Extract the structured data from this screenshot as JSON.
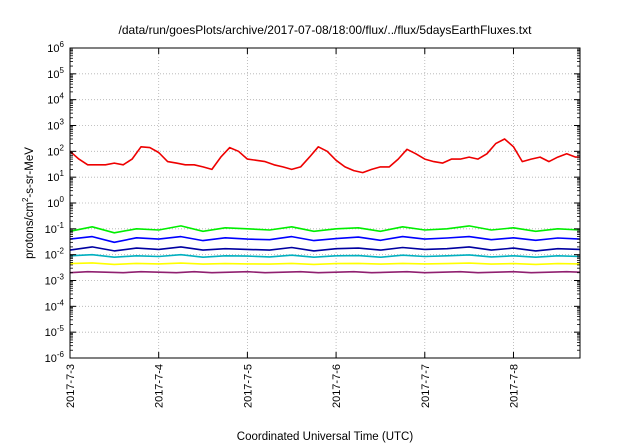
{
  "chart_data": {
    "type": "line",
    "title": "/data/run/goesPlots/archive/2017-07-08/18:00/flux/../flux/5daysEarthFluxes.txt",
    "xlabel": "Coordinated Universal Time (UTC)",
    "ylabel": {
      "prefix": "protons/cm",
      "sup": "2",
      "suffix": "-s-sr-MeV"
    },
    "yscale": "log",
    "ylim": [
      1e-06,
      1000000.0
    ],
    "xlim": [
      0,
      5.75
    ],
    "y_ticks": [
      {
        "base": "10",
        "exp": "-6",
        "value": -6
      },
      {
        "base": "10",
        "exp": "-5",
        "value": -5
      },
      {
        "base": "10",
        "exp": "-4",
        "value": -4
      },
      {
        "base": "10",
        "exp": "-3",
        "value": -3
      },
      {
        "base": "10",
        "exp": "-2",
        "value": -2
      },
      {
        "base": "10",
        "exp": "-1",
        "value": -1
      },
      {
        "base": "10",
        "exp": "0",
        "value": 0
      },
      {
        "base": "10",
        "exp": "1",
        "value": 1
      },
      {
        "base": "10",
        "exp": "2",
        "value": 2
      },
      {
        "base": "10",
        "exp": "3",
        "value": 3
      },
      {
        "base": "10",
        "exp": "4",
        "value": 4
      },
      {
        "base": "10",
        "exp": "5",
        "value": 5
      },
      {
        "base": "10",
        "exp": "6",
        "value": 6
      }
    ],
    "x_ticks": [
      {
        "label": "2017-7-3",
        "value": 0
      },
      {
        "label": "2017-7-4",
        "value": 1
      },
      {
        "label": "2017-7-5",
        "value": 2
      },
      {
        "label": "2017-7-6",
        "value": 3
      },
      {
        "label": "2017-7-7",
        "value": 4
      },
      {
        "label": "2017-7-8",
        "value": 5
      }
    ],
    "grid": true,
    "series": [
      {
        "color": "#ee0000",
        "x": [
          0,
          0.1,
          0.2,
          0.3,
          0.4,
          0.5,
          0.6,
          0.7,
          0.8,
          0.9,
          1,
          1.1,
          1.2,
          1.3,
          1.4,
          1.5,
          1.6,
          1.7,
          1.8,
          1.9,
          2,
          2.1,
          2.2,
          2.3,
          2.4,
          2.5,
          2.6,
          2.7,
          2.8,
          2.9,
          3,
          3.1,
          3.2,
          3.3,
          3.4,
          3.5,
          3.6,
          3.7,
          3.8,
          3.9,
          4,
          4.1,
          4.2,
          4.3,
          4.4,
          4.5,
          4.6,
          4.7,
          4.8,
          4.9,
          5,
          5.1,
          5.2,
          5.3,
          5.4,
          5.5,
          5.6,
          5.7,
          5.75
        ],
        "y": [
          100,
          50,
          30,
          30,
          30,
          35,
          30,
          50,
          150,
          140,
          90,
          40,
          35,
          30,
          30,
          25,
          20,
          60,
          140,
          100,
          50,
          45,
          40,
          30,
          25,
          20,
          25,
          60,
          150,
          100,
          45,
          25,
          18,
          15,
          20,
          25,
          25,
          50,
          120,
          80,
          50,
          40,
          35,
          50,
          50,
          60,
          50,
          80,
          200,
          300,
          150,
          40,
          50,
          60,
          40,
          60,
          80,
          60,
          60
        ]
      },
      {
        "color": "#00ee00",
        "x": [
          0,
          0.25,
          0.5,
          0.75,
          1,
          1.25,
          1.5,
          1.75,
          2,
          2.25,
          2.5,
          2.75,
          3,
          3.25,
          3.5,
          3.75,
          4,
          4.25,
          4.5,
          4.75,
          5,
          5.25,
          5.5,
          5.75
        ],
        "y": [
          0.08,
          0.12,
          0.07,
          0.1,
          0.09,
          0.13,
          0.08,
          0.11,
          0.1,
          0.09,
          0.12,
          0.08,
          0.1,
          0.11,
          0.08,
          0.12,
          0.09,
          0.1,
          0.13,
          0.09,
          0.11,
          0.08,
          0.1,
          0.09
        ]
      },
      {
        "color": "#0000ff",
        "x": [
          0,
          0.25,
          0.5,
          0.75,
          1,
          1.25,
          1.5,
          1.75,
          2,
          2.25,
          2.5,
          2.75,
          3,
          3.25,
          3.5,
          3.75,
          4,
          4.25,
          4.5,
          4.75,
          5,
          5.25,
          5.5,
          5.75
        ],
        "y": [
          0.04,
          0.05,
          0.03,
          0.045,
          0.04,
          0.05,
          0.035,
          0.045,
          0.04,
          0.038,
          0.05,
          0.035,
          0.042,
          0.048,
          0.036,
          0.05,
          0.04,
          0.044,
          0.05,
          0.038,
          0.045,
          0.036,
          0.044,
          0.04
        ]
      },
      {
        "color": "#0000a0",
        "x": [
          0,
          0.25,
          0.5,
          0.75,
          1,
          1.25,
          1.5,
          1.75,
          2,
          2.25,
          2.5,
          2.75,
          3,
          3.25,
          3.5,
          3.75,
          4,
          4.25,
          4.5,
          4.75,
          5,
          5.25,
          5.5,
          5.75
        ],
        "y": [
          0.015,
          0.02,
          0.014,
          0.018,
          0.016,
          0.02,
          0.015,
          0.017,
          0.016,
          0.015,
          0.019,
          0.014,
          0.017,
          0.018,
          0.015,
          0.019,
          0.016,
          0.017,
          0.02,
          0.015,
          0.018,
          0.014,
          0.017,
          0.016
        ]
      },
      {
        "color": "#00b0c0",
        "x": [
          0,
          0.25,
          0.5,
          0.75,
          1,
          1.25,
          1.5,
          1.75,
          2,
          2.25,
          2.5,
          2.75,
          3,
          3.25,
          3.5,
          3.75,
          4,
          4.25,
          4.5,
          4.75,
          5,
          5.25,
          5.5,
          5.75
        ],
        "y": [
          0.009,
          0.01,
          0.008,
          0.009,
          0.0085,
          0.01,
          0.008,
          0.009,
          0.0088,
          0.0082,
          0.0095,
          0.008,
          0.009,
          0.0092,
          0.008,
          0.0095,
          0.0085,
          0.009,
          0.0098,
          0.0082,
          0.009,
          0.008,
          0.009,
          0.0085
        ]
      },
      {
        "color": "#ffff00",
        "x": [
          0,
          0.25,
          0.5,
          0.75,
          1,
          1.25,
          1.5,
          1.75,
          2,
          2.25,
          2.5,
          2.75,
          3,
          3.25,
          3.5,
          3.75,
          4,
          4.25,
          4.5,
          4.75,
          5,
          5.25,
          5.5,
          5.75
        ],
        "y": [
          0.0045,
          0.0048,
          0.0042,
          0.0046,
          0.0044,
          0.0047,
          0.0043,
          0.0045,
          0.0044,
          0.0043,
          0.0046,
          0.0042,
          0.0045,
          0.0046,
          0.0043,
          0.0046,
          0.0044,
          0.0045,
          0.0047,
          0.0043,
          0.0045,
          0.0042,
          0.0045,
          0.0044
        ]
      },
      {
        "color": "#902070",
        "x": [
          0,
          0.2,
          0.4,
          0.6,
          0.8,
          1,
          1.2,
          1.4,
          1.6,
          1.8,
          2,
          2.2,
          2.4,
          2.6,
          2.8,
          3,
          3.2,
          3.4,
          3.6,
          3.8,
          4,
          4.2,
          4.4,
          4.6,
          4.8,
          5,
          5.2,
          5.4,
          5.6,
          5.75
        ],
        "y": [
          0.002,
          0.0022,
          0.0021,
          0.002,
          0.0022,
          0.0021,
          0.002,
          0.0022,
          0.002,
          0.0021,
          0.0022,
          0.002,
          0.0021,
          0.0022,
          0.002,
          0.0021,
          0.0022,
          0.002,
          0.0021,
          0.0022,
          0.002,
          0.0021,
          0.0022,
          0.002,
          0.0021,
          0.0022,
          0.002,
          0.0021,
          0.0022,
          0.0021
        ]
      }
    ]
  }
}
